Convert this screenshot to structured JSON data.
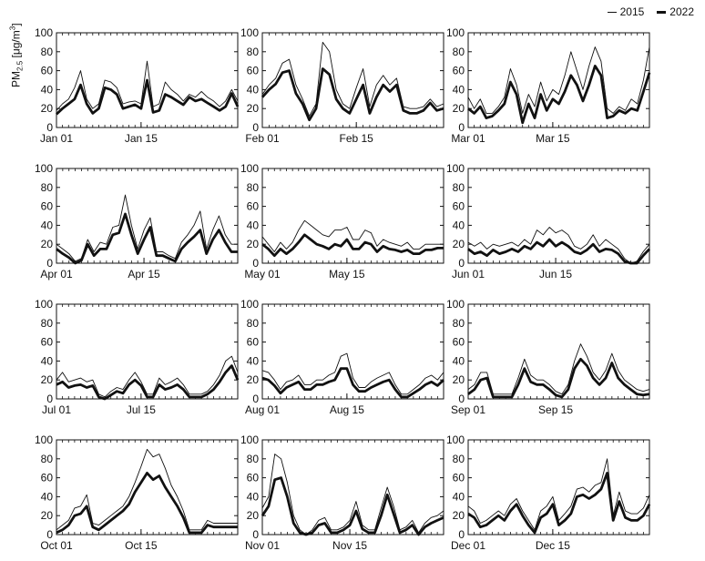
{
  "legend": {
    "items": [
      {
        "label": "2015",
        "style": "thin"
      },
      {
        "label": "2022",
        "style": "thick"
      }
    ]
  },
  "ylabel": {
    "prefix": "PM",
    "subscript": "2.5",
    "suffix": " [μg/m",
    "superscript": "3",
    "close": "]"
  },
  "chart_data": [
    {
      "type": "line",
      "month": "Jan",
      "xticks": [
        {
          "day": 1,
          "label": "Jan 01"
        },
        {
          "day": 15,
          "label": "Jan 15"
        }
      ],
      "ylim": [
        0,
        100
      ],
      "yticks": [
        0,
        20,
        40,
        60,
        80,
        100
      ],
      "days": 31,
      "series": [
        {
          "name": "2015",
          "values": [
            18,
            25,
            30,
            42,
            60,
            30,
            20,
            25,
            50,
            48,
            42,
            25,
            27,
            28,
            25,
            70,
            22,
            25,
            48,
            40,
            35,
            28,
            35,
            32,
            38,
            32,
            28,
            22,
            28,
            40,
            28
          ]
        },
        {
          "name": "2022",
          "values": [
            14,
            20,
            25,
            30,
            45,
            25,
            15,
            20,
            42,
            40,
            35,
            20,
            22,
            24,
            20,
            50,
            16,
            18,
            35,
            32,
            28,
            24,
            32,
            28,
            30,
            26,
            22,
            18,
            22,
            36,
            22
          ]
        }
      ]
    },
    {
      "type": "line",
      "month": "Feb",
      "xticks": [
        {
          "day": 1,
          "label": "Feb 01"
        },
        {
          "day": 15,
          "label": "Feb 15"
        }
      ],
      "ylim": [
        0,
        100
      ],
      "yticks": [
        0,
        20,
        40,
        60,
        80,
        100
      ],
      "days": 28,
      "series": [
        {
          "name": "2015",
          "values": [
            35,
            45,
            52,
            68,
            72,
            45,
            30,
            12,
            25,
            90,
            80,
            40,
            25,
            20,
            42,
            62,
            22,
            45,
            55,
            45,
            52,
            22,
            20,
            20,
            22,
            30,
            22,
            25
          ]
        },
        {
          "name": "2022",
          "values": [
            32,
            40,
            46,
            58,
            60,
            36,
            25,
            8,
            20,
            62,
            56,
            30,
            20,
            15,
            30,
            45,
            15,
            32,
            45,
            38,
            45,
            18,
            15,
            15,
            18,
            26,
            18,
            20
          ]
        }
      ]
    },
    {
      "type": "line",
      "month": "Mar",
      "xticks": [
        {
          "day": 1,
          "label": "Mar 01"
        },
        {
          "day": 15,
          "label": "Mar 15"
        }
      ],
      "ylim": [
        0,
        100
      ],
      "yticks": [
        0,
        20,
        40,
        60,
        80,
        100
      ],
      "days": 31,
      "series": [
        {
          "name": "2015",
          "values": [
            32,
            20,
            30,
            15,
            15,
            22,
            32,
            62,
            45,
            15,
            35,
            22,
            48,
            28,
            40,
            35,
            55,
            80,
            60,
            40,
            65,
            85,
            70,
            20,
            15,
            22,
            18,
            30,
            25,
            50,
            85
          ]
        },
        {
          "name": "2022",
          "values": [
            20,
            15,
            22,
            10,
            12,
            18,
            25,
            48,
            35,
            5,
            25,
            10,
            35,
            18,
            30,
            25,
            38,
            55,
            45,
            28,
            45,
            65,
            55,
            10,
            12,
            18,
            15,
            20,
            18,
            38,
            58
          ]
        }
      ]
    },
    {
      "type": "line",
      "month": "Apr",
      "xticks": [
        {
          "day": 1,
          "label": "Apr 01"
        },
        {
          "day": 15,
          "label": "Apr 15"
        }
      ],
      "ylim": [
        0,
        100
      ],
      "yticks": [
        0,
        20,
        40,
        60,
        80,
        100
      ],
      "days": 30,
      "series": [
        {
          "name": "2015",
          "values": [
            20,
            15,
            10,
            2,
            5,
            25,
            12,
            22,
            20,
            38,
            40,
            72,
            40,
            15,
            35,
            48,
            12,
            12,
            8,
            5,
            22,
            30,
            40,
            55,
            15,
            35,
            50,
            30,
            20,
            20
          ]
        },
        {
          "name": "2022",
          "values": [
            15,
            10,
            6,
            0,
            3,
            20,
            8,
            15,
            15,
            30,
            32,
            52,
            30,
            10,
            25,
            38,
            8,
            8,
            5,
            2,
            15,
            22,
            28,
            35,
            10,
            25,
            35,
            22,
            12,
            12
          ]
        }
      ]
    },
    {
      "type": "line",
      "month": "May",
      "xticks": [
        {
          "day": 1,
          "label": "May 01"
        },
        {
          "day": 15,
          "label": "May 15"
        }
      ],
      "ylim": [
        0,
        100
      ],
      "yticks": [
        0,
        20,
        40,
        60,
        80,
        100
      ],
      "days": 31,
      "series": [
        {
          "name": "2015",
          "values": [
            28,
            20,
            12,
            22,
            15,
            22,
            35,
            45,
            40,
            35,
            30,
            28,
            35,
            35,
            38,
            25,
            25,
            35,
            32,
            18,
            25,
            22,
            20,
            18,
            22,
            15,
            15,
            20,
            20,
            20,
            20
          ]
        },
        {
          "name": "2022",
          "values": [
            20,
            15,
            8,
            15,
            10,
            15,
            22,
            30,
            25,
            20,
            18,
            15,
            20,
            18,
            25,
            15,
            15,
            22,
            20,
            12,
            18,
            15,
            14,
            12,
            14,
            10,
            10,
            14,
            14,
            16,
            16
          ]
        }
      ]
    },
    {
      "type": "line",
      "month": "Jun",
      "xticks": [
        {
          "day": 1,
          "label": "Jun 01"
        },
        {
          "day": 15,
          "label": "Jun 15"
        }
      ],
      "ylim": [
        0,
        100
      ],
      "yticks": [
        0,
        20,
        40,
        60,
        80,
        100
      ],
      "days": 30,
      "series": [
        {
          "name": "2015",
          "values": [
            22,
            18,
            22,
            15,
            20,
            18,
            20,
            22,
            18,
            25,
            20,
            35,
            30,
            38,
            32,
            35,
            30,
            18,
            15,
            20,
            30,
            18,
            25,
            20,
            15,
            5,
            0,
            2,
            12,
            20
          ]
        },
        {
          "name": "2022",
          "values": [
            15,
            10,
            12,
            8,
            14,
            10,
            12,
            15,
            12,
            18,
            15,
            22,
            18,
            25,
            18,
            22,
            18,
            12,
            10,
            14,
            20,
            12,
            15,
            14,
            10,
            2,
            0,
            0,
            8,
            15
          ]
        }
      ]
    },
    {
      "type": "line",
      "month": "Jul",
      "xticks": [
        {
          "day": 1,
          "label": "Jul 01"
        },
        {
          "day": 15,
          "label": "Jul 15"
        }
      ],
      "ylim": [
        0,
        100
      ],
      "yticks": [
        0,
        20,
        40,
        60,
        80,
        100
      ],
      "days": 31,
      "series": [
        {
          "name": "2015",
          "values": [
            20,
            28,
            18,
            20,
            22,
            18,
            20,
            5,
            2,
            8,
            12,
            10,
            20,
            28,
            18,
            5,
            5,
            22,
            15,
            18,
            22,
            15,
            5,
            5,
            5,
            8,
            15,
            25,
            40,
            45,
            28
          ]
        },
        {
          "name": "2022",
          "values": [
            15,
            18,
            12,
            14,
            15,
            12,
            14,
            2,
            0,
            4,
            8,
            6,
            15,
            20,
            14,
            2,
            2,
            15,
            10,
            12,
            15,
            10,
            2,
            2,
            2,
            5,
            10,
            18,
            28,
            35,
            20
          ]
        }
      ]
    },
    {
      "type": "line",
      "month": "Aug",
      "xticks": [
        {
          "day": 1,
          "label": "Aug 01"
        },
        {
          "day": 15,
          "label": "Aug 15"
        }
      ],
      "ylim": [
        0,
        100
      ],
      "yticks": [
        0,
        20,
        40,
        60,
        80,
        100
      ],
      "days": 31,
      "series": [
        {
          "name": "2015",
          "values": [
            30,
            28,
            20,
            10,
            18,
            20,
            25,
            15,
            15,
            20,
            20,
            25,
            28,
            45,
            48,
            22,
            12,
            12,
            18,
            22,
            25,
            28,
            15,
            5,
            5,
            10,
            15,
            22,
            25,
            20,
            28
          ]
        },
        {
          "name": "2022",
          "values": [
            22,
            20,
            14,
            6,
            12,
            15,
            18,
            10,
            10,
            15,
            15,
            18,
            20,
            32,
            32,
            15,
            8,
            8,
            12,
            15,
            18,
            20,
            10,
            2,
            2,
            6,
            10,
            15,
            18,
            14,
            20
          ]
        }
      ]
    },
    {
      "type": "line",
      "month": "Sep",
      "xticks": [
        {
          "day": 1,
          "label": "Sep 01"
        },
        {
          "day": 15,
          "label": "Sep 15"
        }
      ],
      "ylim": [
        0,
        100
      ],
      "yticks": [
        0,
        20,
        40,
        60,
        80,
        100
      ],
      "days": 30,
      "series": [
        {
          "name": "2015",
          "values": [
            10,
            15,
            28,
            28,
            5,
            5,
            5,
            5,
            22,
            42,
            25,
            20,
            20,
            15,
            8,
            5,
            15,
            40,
            58,
            45,
            28,
            20,
            30,
            48,
            30,
            20,
            15,
            10,
            8,
            10
          ]
        },
        {
          "name": "2022",
          "values": [
            5,
            10,
            20,
            22,
            2,
            2,
            2,
            2,
            15,
            32,
            18,
            15,
            15,
            10,
            4,
            2,
            10,
            32,
            42,
            35,
            22,
            15,
            22,
            38,
            22,
            15,
            10,
            5,
            4,
            5
          ]
        }
      ]
    },
    {
      "type": "line",
      "month": "Oct",
      "xticks": [
        {
          "day": 1,
          "label": "Oct 01"
        },
        {
          "day": 15,
          "label": "Oct 15"
        }
      ],
      "ylim": [
        0,
        100
      ],
      "yticks": [
        0,
        20,
        40,
        60,
        80,
        100
      ],
      "days": 31,
      "series": [
        {
          "name": "2015",
          "values": [
            5,
            10,
            15,
            28,
            30,
            42,
            12,
            10,
            15,
            20,
            25,
            30,
            40,
            55,
            72,
            90,
            82,
            85,
            70,
            52,
            40,
            25,
            5,
            5,
            5,
            15,
            12,
            12,
            12,
            12,
            12
          ]
        },
        {
          "name": "2022",
          "values": [
            2,
            5,
            10,
            20,
            22,
            30,
            8,
            5,
            10,
            15,
            20,
            25,
            32,
            45,
            55,
            65,
            58,
            62,
            50,
            40,
            30,
            18,
            2,
            2,
            2,
            10,
            8,
            8,
            8,
            8,
            8
          ]
        }
      ]
    },
    {
      "type": "line",
      "month": "Nov",
      "xticks": [
        {
          "day": 1,
          "label": "Nov 01"
        },
        {
          "day": 15,
          "label": "Nov 15"
        }
      ],
      "ylim": [
        0,
        100
      ],
      "yticks": [
        0,
        20,
        40,
        60,
        80,
        100
      ],
      "days": 30,
      "series": [
        {
          "name": "2015",
          "values": [
            28,
            40,
            85,
            80,
            55,
            20,
            5,
            0,
            5,
            15,
            18,
            5,
            5,
            8,
            15,
            35,
            10,
            5,
            5,
            28,
            50,
            30,
            5,
            8,
            15,
            2,
            12,
            18,
            20,
            25
          ]
        },
        {
          "name": "2022",
          "values": [
            20,
            30,
            58,
            60,
            40,
            12,
            2,
            0,
            2,
            10,
            12,
            2,
            2,
            5,
            10,
            25,
            6,
            2,
            2,
            20,
            42,
            22,
            2,
            5,
            10,
            0,
            8,
            12,
            15,
            18
          ]
        }
      ]
    },
    {
      "type": "line",
      "month": "Dec",
      "xticks": [
        {
          "day": 1,
          "label": "Dec 01"
        },
        {
          "day": 15,
          "label": "Dec 15"
        }
      ],
      "ylim": [
        0,
        100
      ],
      "yticks": [
        0,
        20,
        40,
        60,
        80,
        100
      ],
      "days": 31,
      "series": [
        {
          "name": "2015",
          "values": [
            30,
            25,
            12,
            15,
            20,
            25,
            20,
            32,
            38,
            25,
            15,
            5,
            25,
            30,
            40,
            15,
            22,
            30,
            48,
            50,
            45,
            52,
            55,
            80,
            20,
            45,
            25,
            22,
            22,
            28,
            42
          ]
        },
        {
          "name": "2022",
          "values": [
            22,
            18,
            8,
            10,
            15,
            20,
            15,
            25,
            32,
            20,
            10,
            2,
            18,
            22,
            32,
            10,
            15,
            22,
            40,
            42,
            38,
            42,
            48,
            65,
            15,
            35,
            18,
            15,
            15,
            20,
            32
          ]
        }
      ]
    }
  ]
}
